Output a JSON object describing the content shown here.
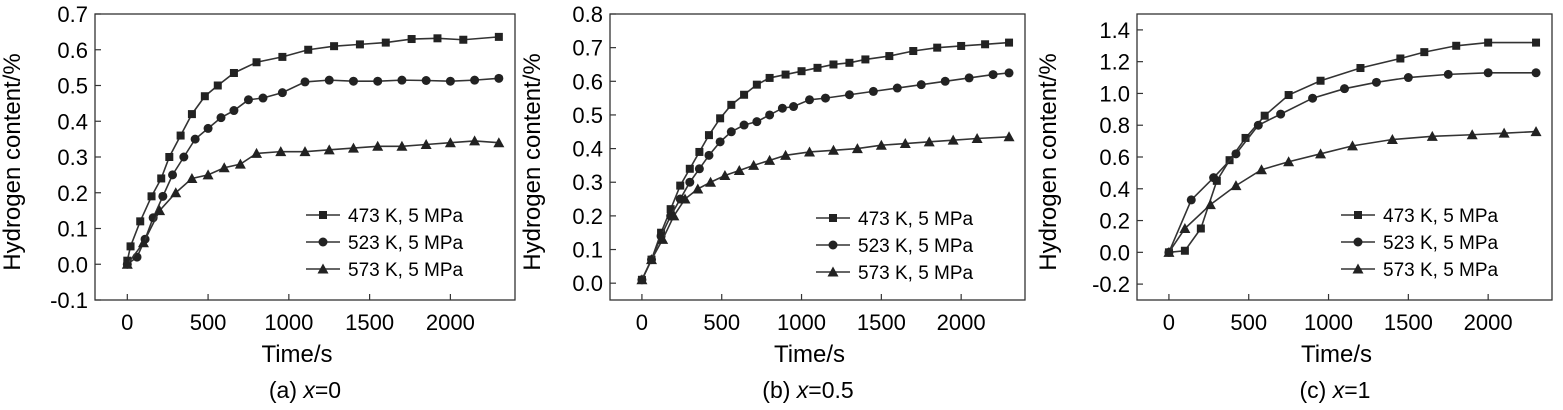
{
  "chart_data": [
    {
      "type": "line",
      "caption": {
        "prefix": "(a) ",
        "var": "x",
        "suffix": "=0"
      },
      "xlabel": "Time/s",
      "ylabel": "Hydrogen content/%",
      "xlim": [
        -200,
        2400
      ],
      "ylim": [
        -0.1,
        0.7
      ],
      "xticks": [
        0,
        500,
        1000,
        1500,
        2000
      ],
      "xtick_labels": [
        "0",
        "500",
        "1000",
        "1500",
        "2000"
      ],
      "yticks": [
        -0.1,
        0.0,
        0.1,
        0.2,
        0.3,
        0.4,
        0.5,
        0.6,
        0.7
      ],
      "ytick_labels": [
        "-0.1",
        "0.0",
        "0.1",
        "0.2",
        "0.3",
        "0.4",
        "0.5",
        "0.6",
        "0.7"
      ],
      "legend_position": "bottom-right",
      "series": [
        {
          "name": "473 K, 5 MPa",
          "marker": "square",
          "x": [
            0,
            20,
            80,
            150,
            210,
            260,
            330,
            400,
            480,
            560,
            660,
            800,
            960,
            1120,
            1280,
            1440,
            1600,
            1760,
            1920,
            2080,
            2300
          ],
          "y": [
            0.01,
            0.05,
            0.12,
            0.19,
            0.24,
            0.3,
            0.36,
            0.42,
            0.47,
            0.5,
            0.535,
            0.565,
            0.58,
            0.6,
            0.61,
            0.615,
            0.62,
            0.63,
            0.632,
            0.628,
            0.636
          ]
        },
        {
          "name": "523 K, 5 MPa",
          "marker": "circle",
          "x": [
            0,
            60,
            110,
            160,
            220,
            280,
            350,
            420,
            500,
            580,
            660,
            750,
            840,
            960,
            1100,
            1250,
            1400,
            1550,
            1700,
            1850,
            2000,
            2150,
            2300
          ],
          "y": [
            0.0,
            0.02,
            0.07,
            0.13,
            0.19,
            0.25,
            0.3,
            0.35,
            0.38,
            0.41,
            0.43,
            0.46,
            0.465,
            0.48,
            0.51,
            0.515,
            0.512,
            0.512,
            0.515,
            0.514,
            0.512,
            0.515,
            0.52
          ]
        },
        {
          "name": "573 K, 5 MPa",
          "marker": "triangle",
          "x": [
            0,
            100,
            200,
            300,
            400,
            500,
            600,
            700,
            800,
            950,
            1100,
            1250,
            1400,
            1550,
            1700,
            1850,
            2000,
            2150,
            2300
          ],
          "y": [
            0.0,
            0.06,
            0.15,
            0.2,
            0.24,
            0.25,
            0.27,
            0.28,
            0.31,
            0.315,
            0.315,
            0.32,
            0.325,
            0.33,
            0.33,
            0.335,
            0.34,
            0.345,
            0.34
          ]
        }
      ]
    },
    {
      "type": "line",
      "caption": {
        "prefix": "(b) ",
        "var": "x",
        "suffix": "=0.5"
      },
      "xlabel": "Time/s",
      "ylabel": "Hydrogen content/%",
      "xlim": [
        -200,
        2400
      ],
      "ylim": [
        -0.05,
        0.8
      ],
      "xticks": [
        0,
        500,
        1000,
        1500,
        2000
      ],
      "xtick_labels": [
        "0",
        "500",
        "1000",
        "1500",
        "2000"
      ],
      "yticks": [
        0.0,
        0.1,
        0.2,
        0.3,
        0.4,
        0.5,
        0.6,
        0.7,
        0.8
      ],
      "ytick_labels": [
        "0.0",
        "0.1",
        "0.2",
        "0.3",
        "0.4",
        "0.5",
        "0.6",
        "0.7",
        "0.8"
      ],
      "legend_position": "bottom-right",
      "series": [
        {
          "name": "473 K, 5 MPa",
          "marker": "square",
          "x": [
            0,
            60,
            120,
            180,
            240,
            300,
            360,
            420,
            490,
            560,
            640,
            720,
            800,
            900,
            1000,
            1100,
            1200,
            1300,
            1400,
            1550,
            1700,
            1850,
            2000,
            2150,
            2300
          ],
          "y": [
            0.01,
            0.07,
            0.15,
            0.22,
            0.29,
            0.34,
            0.39,
            0.44,
            0.49,
            0.53,
            0.56,
            0.59,
            0.61,
            0.62,
            0.63,
            0.64,
            0.65,
            0.655,
            0.665,
            0.675,
            0.69,
            0.7,
            0.705,
            0.71,
            0.715
          ]
        },
        {
          "name": "523 K, 5 MPa",
          "marker": "circle",
          "x": [
            0,
            60,
            120,
            180,
            240,
            300,
            360,
            420,
            490,
            560,
            640,
            720,
            800,
            880,
            950,
            1050,
            1150,
            1300,
            1450,
            1600,
            1750,
            1900,
            2050,
            2200,
            2300
          ],
          "y": [
            0.01,
            0.07,
            0.14,
            0.2,
            0.25,
            0.3,
            0.34,
            0.38,
            0.42,
            0.45,
            0.47,
            0.48,
            0.5,
            0.52,
            0.525,
            0.545,
            0.55,
            0.56,
            0.57,
            0.58,
            0.59,
            0.6,
            0.61,
            0.62,
            0.625
          ]
        },
        {
          "name": "573 K, 5 MPa",
          "marker": "triangle",
          "x": [
            0,
            60,
            130,
            200,
            270,
            350,
            430,
            520,
            610,
            700,
            800,
            900,
            1050,
            1200,
            1350,
            1500,
            1650,
            1800,
            1950,
            2100,
            2300
          ],
          "y": [
            0.01,
            0.07,
            0.13,
            0.2,
            0.25,
            0.28,
            0.3,
            0.32,
            0.335,
            0.35,
            0.365,
            0.38,
            0.39,
            0.395,
            0.4,
            0.41,
            0.415,
            0.42,
            0.425,
            0.43,
            0.435
          ]
        }
      ]
    },
    {
      "type": "line",
      "caption": {
        "prefix": "(c) ",
        "var": "x",
        "suffix": "=1"
      },
      "xlabel": "Time/s",
      "ylabel": "Hydrogen content/%",
      "xlim": [
        -200,
        2400
      ],
      "ylim": [
        -0.3,
        1.5
      ],
      "xticks": [
        0,
        500,
        1000,
        1500,
        2000
      ],
      "xtick_labels": [
        "0",
        "500",
        "1000",
        "1500",
        "2000"
      ],
      "yticks": [
        -0.2,
        0.0,
        0.2,
        0.4,
        0.6,
        0.8,
        1.0,
        1.2,
        1.4
      ],
      "ytick_labels": [
        "-0.2",
        "0.0",
        "0.2",
        "0.4",
        "0.6",
        "0.8",
        "1.0",
        "1.2",
        "1.4"
      ],
      "legend_position": "bottom-right",
      "series": [
        {
          "name": "473 K, 5 MPa",
          "marker": "square",
          "x": [
            0,
            100,
            200,
            300,
            380,
            480,
            600,
            750,
            950,
            1200,
            1450,
            1600,
            1800,
            2000,
            2300
          ],
          "y": [
            0.0,
            0.01,
            0.15,
            0.45,
            0.58,
            0.72,
            0.86,
            0.99,
            1.08,
            1.16,
            1.22,
            1.26,
            1.3,
            1.32,
            1.32
          ]
        },
        {
          "name": "523 K, 5 MPa",
          "marker": "circle",
          "x": [
            0,
            140,
            280,
            420,
            560,
            700,
            900,
            1100,
            1300,
            1500,
            1750,
            2000,
            2300
          ],
          "y": [
            0.0,
            0.33,
            0.47,
            0.62,
            0.8,
            0.87,
            0.97,
            1.03,
            1.07,
            1.1,
            1.12,
            1.13,
            1.13
          ]
        },
        {
          "name": "573 K, 5 MPa",
          "marker": "triangle",
          "x": [
            0,
            100,
            260,
            420,
            580,
            750,
            950,
            1150,
            1400,
            1650,
            1900,
            2100,
            2300
          ],
          "y": [
            0.0,
            0.15,
            0.3,
            0.42,
            0.52,
            0.57,
            0.62,
            0.67,
            0.71,
            0.73,
            0.74,
            0.75,
            0.76
          ]
        }
      ]
    }
  ]
}
